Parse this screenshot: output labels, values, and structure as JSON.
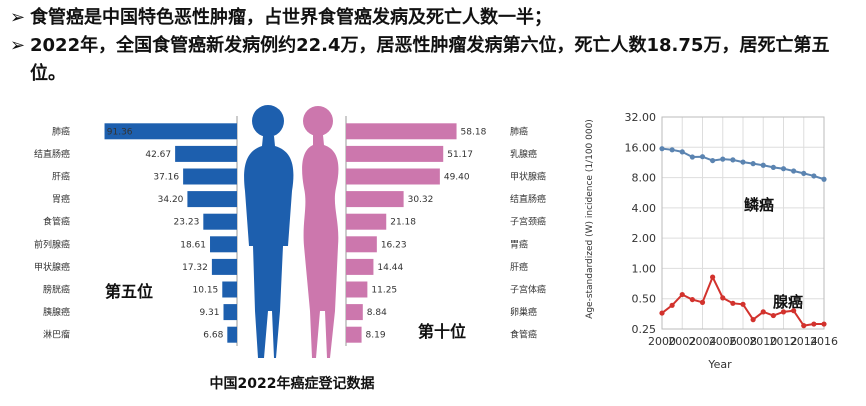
{
  "bullets": {
    "marker": "➢",
    "line1": "食管癌是中国特色恶性肿瘤，占世界食管癌发病及死亡人数一半；",
    "line2": "2022年，全国食管癌新发病例约22.4万，居恶性肿瘤发病第六位，死亡人数18.75万，居死亡第五位。"
  },
  "colors": {
    "male": "#1d5fae",
    "female": "#cc77ad",
    "line_blue": "#5b84b1",
    "line_red": "#d2322d"
  },
  "chart_data": [
    {
      "type": "bar",
      "title": "中国2022年癌症登记数据",
      "series": [
        {
          "categories": [
            "肺癌",
            "结直肠癌",
            "肝癌",
            "胃癌",
            "食管癌",
            "前列腺癌",
            "甲状腺癌",
            "膀胱癌",
            "胰腺癌",
            "淋巴瘤"
          ],
          "values": [
            91.36,
            42.67,
            37.16,
            34.2,
            23.23,
            18.61,
            17.32,
            10.15,
            9.31,
            6.68
          ]
        },
        {
          "categories": [
            "肺癌",
            "乳腺癌",
            "甲状腺癌",
            "结直肠癌",
            "子宫颈癌",
            "胃癌",
            "肝癌",
            "子宫体癌",
            "卵巢癌",
            "食管癌"
          ],
          "values": [
            58.18,
            51.17,
            49.4,
            30.32,
            21.18,
            16.23,
            14.44,
            11.25,
            8.84,
            8.19
          ]
        }
      ],
      "annotations": [
        "第五位",
        "第十位"
      ]
    },
    {
      "type": "line",
      "xlabel": "Year",
      "ylabel": "Age-standardized (W) incidence (1/100 000)",
      "yscale": "log",
      "ylim": [
        0.25,
        32
      ],
      "yticks": [
        "0.25",
        "0.50",
        "1.00",
        "2.00",
        "4.00",
        "8.00",
        "16.00",
        "32.00"
      ],
      "xticks": [
        "2000",
        "2002",
        "2004",
        "2006",
        "2008",
        "2010",
        "2012",
        "2014",
        "2016"
      ],
      "grid": true,
      "x": [
        2000,
        2001,
        2002,
        2003,
        2004,
        2005,
        2006,
        2007,
        2008,
        2009,
        2010,
        2011,
        2012,
        2013,
        2014,
        2015,
        2016
      ],
      "series": [
        {
          "name": "鳞癌",
          "values": [
            15.5,
            15.1,
            14.4,
            12.8,
            12.9,
            11.8,
            12.2,
            12.0,
            11.4,
            11.0,
            10.6,
            10.1,
            9.8,
            9.3,
            8.8,
            8.3,
            7.7
          ]
        },
        {
          "name": "腺癌",
          "values": [
            0.36,
            0.43,
            0.55,
            0.49,
            0.46,
            0.82,
            0.51,
            0.45,
            0.44,
            0.31,
            0.37,
            0.34,
            0.37,
            0.38,
            0.27,
            0.28,
            0.28
          ]
        }
      ]
    }
  ]
}
